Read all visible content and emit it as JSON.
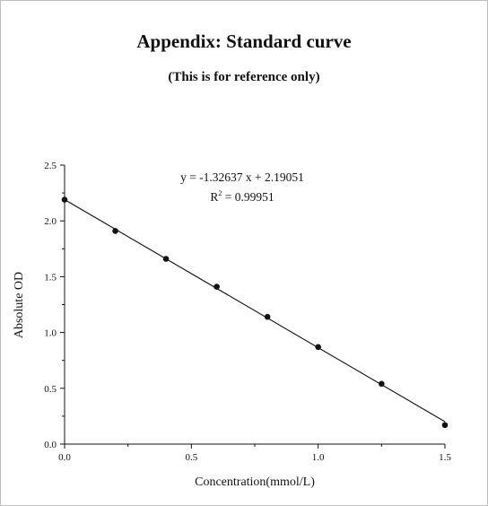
{
  "page": {
    "title": "Appendix: Standard curve",
    "subtitle": "(This is for reference only)"
  },
  "chart_data": {
    "type": "scatter",
    "xlabel": "Concentration(mmol/L)",
    "ylabel": "Absolute OD",
    "xlim": [
      0,
      1.5
    ],
    "ylim": [
      0,
      2.5
    ],
    "x_ticks": [
      "0.0",
      "0.5",
      "1.0",
      "1.5"
    ],
    "y_ticks": [
      "0.0",
      "0.5",
      "1.0",
      "1.5",
      "2.0",
      "2.5"
    ],
    "grid": false,
    "series": [
      {
        "x": [
          0,
          0.2,
          0.4,
          0.6,
          0.8,
          1.0,
          1.25,
          1.5
        ],
        "y": [
          2.19,
          1.91,
          1.66,
          1.41,
          1.14,
          0.87,
          0.54,
          0.17
        ]
      }
    ],
    "fit_line": {
      "slope": -1.32637,
      "intercept": 2.19051
    },
    "annotations": {
      "equation": "y = -1.32637 x + 2.19051",
      "r2_label": "R",
      "r2_sup": "2",
      "r2_value": " = 0.99951"
    }
  }
}
